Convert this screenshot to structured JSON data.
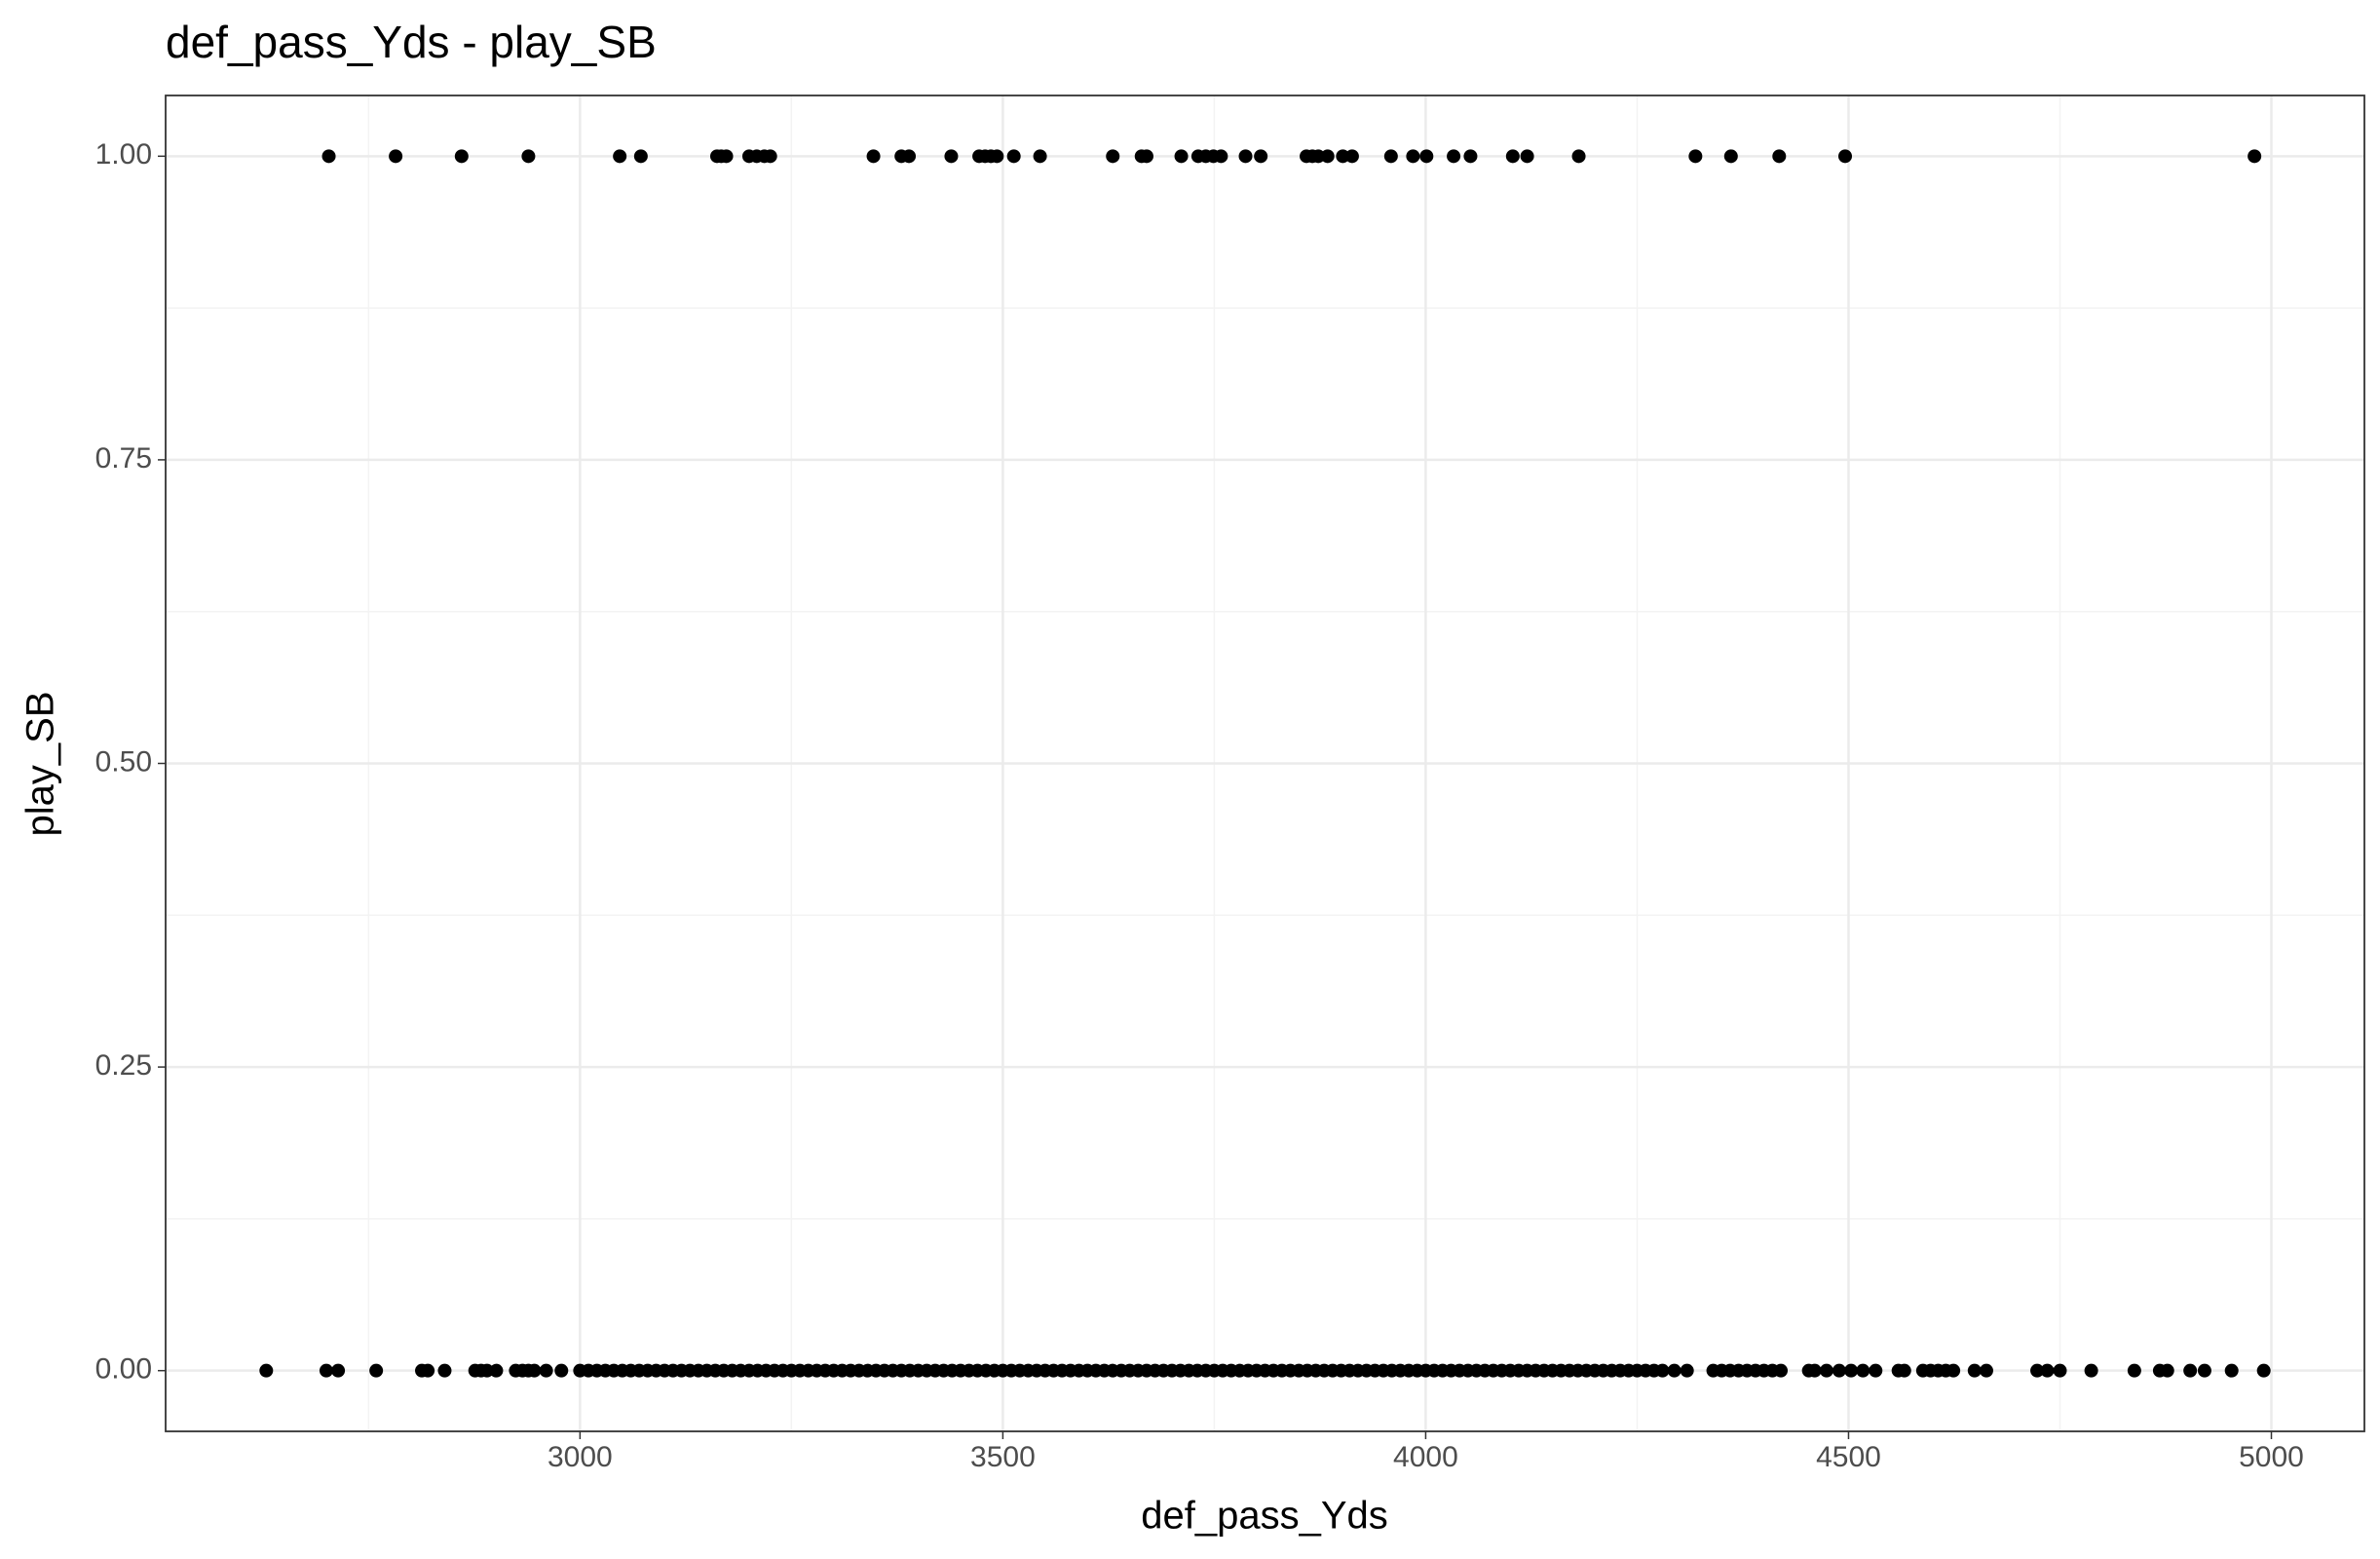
{
  "chart_data": {
    "type": "scatter",
    "title": "def_pass_Yds - play_SB",
    "x_label": "def_pass_Yds",
    "y_label": "play_SB",
    "xlim": [
      2510,
      5110
    ],
    "ylim": [
      -0.05,
      1.05
    ],
    "xticks": [
      3000,
      3500,
      4000,
      4500,
      5000
    ],
    "yticks": [
      {
        "value": 0,
        "label": "0.00"
      },
      {
        "value": 0.25,
        "label": "0.25"
      },
      {
        "value": 0.5,
        "label": "0.50"
      },
      {
        "value": 0.75,
        "label": "0.75"
      },
      {
        "value": 1,
        "label": "1.00"
      }
    ],
    "grid": true,
    "series": [
      {
        "color": "#000000",
        "x": [
          2703,
          2782,
          2860,
          2939,
          3047,
          3072,
          3162,
          3167,
          3173,
          3200,
          3209,
          3218,
          3225,
          3347,
          3380,
          3389,
          3439,
          3472,
          3479,
          3486,
          3493,
          3513,
          3544,
          3630,
          3664,
          3670,
          3711,
          3731,
          3740,
          3749,
          3758,
          3787,
          3805,
          3859,
          3866,
          3873,
          3884,
          3902,
          3913,
          3959,
          3985,
          4001,
          4033,
          4053,
          4103,
          4120,
          4181,
          4319,
          4361,
          4418,
          4496,
          4980
        ],
        "values": [
          1,
          1,
          1,
          1,
          1,
          1,
          1,
          1,
          1,
          1,
          1,
          1,
          1,
          1,
          1,
          1,
          1,
          1,
          1,
          1,
          1,
          1,
          1,
          1,
          1,
          1,
          1,
          1,
          1,
          1,
          1,
          1,
          1,
          1,
          1,
          1,
          1,
          1,
          1,
          1,
          1,
          1,
          1,
          1,
          1,
          1,
          1,
          1,
          1,
          1,
          1,
          1
        ]
      },
      {
        "color": "#000000",
        "x": [
          2629,
          2700,
          2714,
          2759,
          2813,
          2820,
          2840,
          2876,
          2883,
          2890,
          2901,
          2924,
          2932,
          2939,
          2946,
          2960,
          2978,
          3000,
          3010,
          3020,
          3030,
          3040,
          3050,
          3060,
          3070,
          3080,
          3090,
          3100,
          3110,
          3120,
          3130,
          3140,
          3150,
          3160,
          3170,
          3180,
          3190,
          3200,
          3210,
          3220,
          3230,
          3240,
          3250,
          3260,
          3270,
          3280,
          3290,
          3300,
          3310,
          3320,
          3330,
          3340,
          3350,
          3360,
          3370,
          3380,
          3390,
          3400,
          3410,
          3420,
          3430,
          3440,
          3450,
          3460,
          3470,
          3480,
          3490,
          3500,
          3510,
          3520,
          3530,
          3540,
          3550,
          3560,
          3570,
          3580,
          3590,
          3600,
          3610,
          3620,
          3630,
          3640,
          3650,
          3660,
          3670,
          3680,
          3690,
          3700,
          3710,
          3720,
          3730,
          3740,
          3750,
          3760,
          3770,
          3780,
          3790,
          3800,
          3810,
          3820,
          3830,
          3840,
          3850,
          3860,
          3870,
          3880,
          3890,
          3900,
          3910,
          3920,
          3930,
          3940,
          3950,
          3960,
          3970,
          3980,
          3990,
          4000,
          4010,
          4020,
          4030,
          4040,
          4050,
          4060,
          4070,
          4080,
          4090,
          4100,
          4110,
          4120,
          4130,
          4140,
          4150,
          4160,
          4170,
          4180,
          4190,
          4200,
          4210,
          4220,
          4230,
          4240,
          4250,
          4260,
          4270,
          4280,
          4294,
          4309,
          4340,
          4350,
          4360,
          4370,
          4380,
          4390,
          4400,
          4410,
          4420,
          4453,
          4460,
          4474,
          4489,
          4503,
          4517,
          4532,
          4559,
          4566,
          4588,
          4597,
          4606,
          4615,
          4624,
          4649,
          4663,
          4723,
          4735,
          4750,
          4787,
          4838,
          4868,
          4877,
          4904,
          4921,
          4953,
          4991
        ],
        "values": [
          0,
          0,
          0,
          0,
          0,
          0,
          0,
          0,
          0,
          0,
          0,
          0,
          0,
          0,
          0,
          0,
          0,
          0,
          0,
          0,
          0,
          0,
          0,
          0,
          0,
          0,
          0,
          0,
          0,
          0,
          0,
          0,
          0,
          0,
          0,
          0,
          0,
          0,
          0,
          0,
          0,
          0,
          0,
          0,
          0,
          0,
          0,
          0,
          0,
          0,
          0,
          0,
          0,
          0,
          0,
          0,
          0,
          0,
          0,
          0,
          0,
          0,
          0,
          0,
          0,
          0,
          0,
          0,
          0,
          0,
          0,
          0,
          0,
          0,
          0,
          0,
          0,
          0,
          0,
          0,
          0,
          0,
          0,
          0,
          0,
          0,
          0,
          0,
          0,
          0,
          0,
          0,
          0,
          0,
          0,
          0,
          0,
          0,
          0,
          0,
          0,
          0,
          0,
          0,
          0,
          0,
          0,
          0,
          0,
          0,
          0,
          0,
          0,
          0,
          0,
          0,
          0,
          0,
          0,
          0,
          0,
          0,
          0,
          0,
          0,
          0,
          0,
          0,
          0,
          0,
          0,
          0,
          0,
          0,
          0,
          0,
          0,
          0,
          0,
          0,
          0,
          0,
          0,
          0,
          0,
          0,
          0,
          0,
          0,
          0,
          0,
          0,
          0,
          0,
          0,
          0,
          0,
          0,
          0,
          0,
          0,
          0,
          0,
          0,
          0,
          0,
          0,
          0,
          0,
          0,
          0,
          0,
          0,
          0,
          0,
          0,
          0,
          0,
          0,
          0,
          0,
          0,
          0,
          0
        ]
      }
    ]
  }
}
